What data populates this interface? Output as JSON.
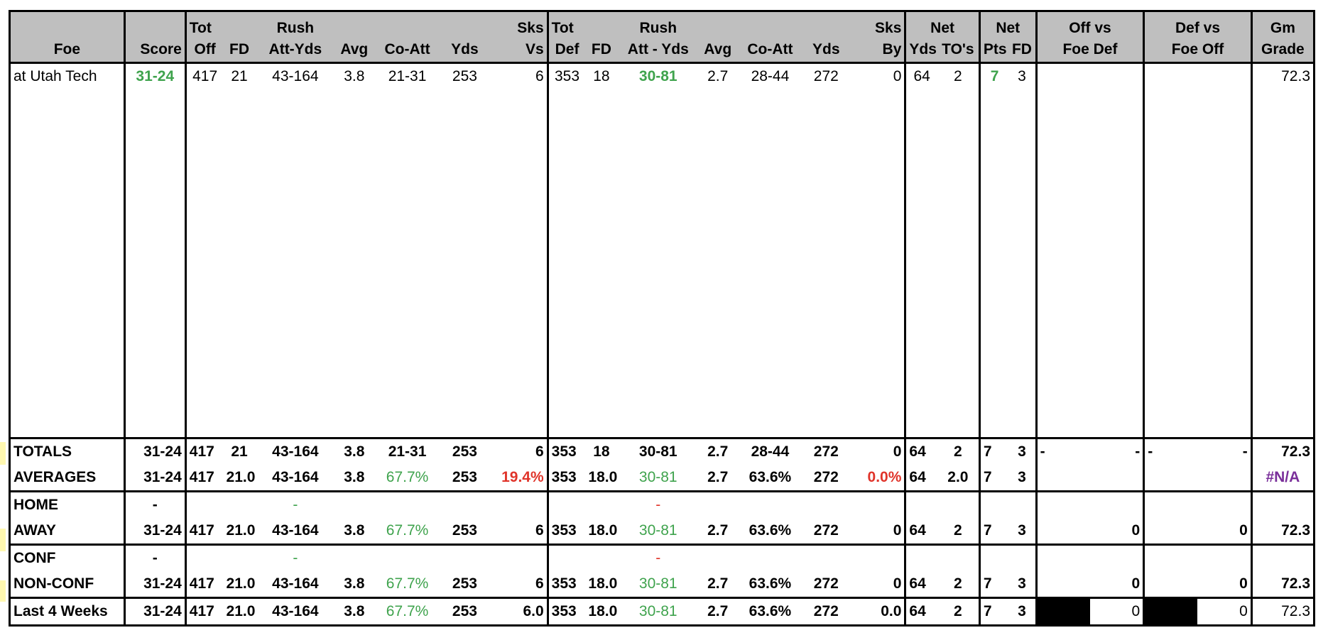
{
  "header": {
    "row1": [
      "",
      "",
      "Tot",
      "",
      "Rush",
      "",
      "",
      "",
      "Sks",
      "Tot",
      "",
      "Rush",
      "",
      "",
      "",
      "Sks",
      "Net",
      "",
      "Net",
      "",
      "Off vs",
      "",
      "Def vs",
      "",
      "Gm"
    ],
    "row2": [
      "Foe",
      "Score",
      "Off",
      "FD",
      "Att-Yds",
      "Avg",
      "Co-Att",
      "Yds",
      "Vs",
      "Def",
      "FD",
      "Att - Yds",
      "Avg",
      "Co-Att",
      "Yds",
      "By",
      "Yds",
      "TO's",
      "Pts",
      "FD",
      "Foe Def",
      "",
      "Foe Off",
      "",
      "Grade"
    ]
  },
  "game": {
    "foe": "at Utah Tech",
    "score": "31-24",
    "tot_off": "417",
    "fd_off": "21",
    "rush_off": "43-164",
    "avg_off": "3.8",
    "comp_off": "21-31",
    "pass_yds_off": "253",
    "sks_vs": "6",
    "tot_def": "353",
    "fd_def": "18",
    "rush_def": "30-81",
    "avg_def": "2.7",
    "comp_def": "28-44",
    "pass_yds_def": "272",
    "sks_by": "0",
    "net_yds": "64",
    "net_to": "2",
    "net_pts": "7",
    "net_fd": "3",
    "grade": "72.3"
  },
  "rows": {
    "totals": {
      "label": "TOTALS",
      "score": "31-24",
      "tot_off": "417",
      "fd_off": "21",
      "rush_off": "43-164",
      "avg_off": "3.8",
      "comp_off": "21-31",
      "pass_yds_off": "253",
      "sks_vs": "6",
      "tot_def": "353",
      "fd_def": "18",
      "rush_def": "30-81",
      "avg_def": "2.7",
      "comp_def": "28-44",
      "pass_yds_def": "272",
      "sks_by": "0",
      "net_yds": "64",
      "net_to": "2",
      "net_pts": "7",
      "net_fd": "3",
      "offvs_a": "-",
      "offvs_b": "-",
      "defvs_a": "-",
      "defvs_b": "-",
      "grade": "72.3"
    },
    "averages": {
      "label": "AVERAGES",
      "score": "31-24",
      "tot_off": "417",
      "fd_off": "21.0",
      "rush_off": "43-164",
      "avg_off": "3.8",
      "comp_off": "67.7%",
      "pass_yds_off": "253",
      "sks_vs": "19.4%",
      "tot_def": "353",
      "fd_def": "18.0",
      "rush_def": "30-81",
      "avg_def": "2.7",
      "comp_def": "63.6%",
      "pass_yds_def": "272",
      "sks_by": "0.0%",
      "net_yds": "64",
      "net_to": "2.0",
      "net_pts": "7",
      "net_fd": "3",
      "grade": "#N/A"
    },
    "home": {
      "label": "HOME",
      "score": "-",
      "rush_off": "-",
      "rush_def": "-"
    },
    "away": {
      "label": "AWAY",
      "score": "31-24",
      "tot_off": "417",
      "fd_off": "21.0",
      "rush_off": "43-164",
      "avg_off": "3.8",
      "comp_off": "67.7%",
      "pass_yds_off": "253",
      "sks_vs": "6",
      "tot_def": "353",
      "fd_def": "18.0",
      "rush_def": "30-81",
      "avg_def": "2.7",
      "comp_def": "63.6%",
      "pass_yds_def": "272",
      "sks_by": "0",
      "net_yds": "64",
      "net_to": "2",
      "net_pts": "7",
      "net_fd": "3",
      "offvs": "0",
      "defvs": "0",
      "grade": "72.3"
    },
    "conf": {
      "label": "CONF",
      "score": "-",
      "rush_off": "-",
      "rush_def": "-"
    },
    "nonconf": {
      "label": "NON-CONF",
      "score": "31-24",
      "tot_off": "417",
      "fd_off": "21.0",
      "rush_off": "43-164",
      "avg_off": "3.8",
      "comp_off": "67.7%",
      "pass_yds_off": "253",
      "sks_vs": "6",
      "tot_def": "353",
      "fd_def": "18.0",
      "rush_def": "30-81",
      "avg_def": "2.7",
      "comp_def": "63.6%",
      "pass_yds_def": "272",
      "sks_by": "0",
      "net_yds": "64",
      "net_to": "2",
      "net_pts": "7",
      "net_fd": "3",
      "offvs": "0",
      "defvs": "0",
      "grade": "72.3"
    },
    "last4": {
      "label": "Last 4 Weeks",
      "score": "31-24",
      "tot_off": "417",
      "fd_off": "21.0",
      "rush_off": "43-164",
      "avg_off": "3.8",
      "comp_off": "67.7%",
      "pass_yds_off": "253",
      "sks_vs": "6.0",
      "tot_def": "353",
      "fd_def": "18.0",
      "rush_def": "30-81",
      "avg_def": "2.7",
      "comp_def": "63.6%",
      "pass_yds_def": "272",
      "sks_by": "0.0",
      "net_yds": "64",
      "net_to": "2",
      "net_pts": "7",
      "net_fd": "3",
      "offvs": "0",
      "defvs": "0",
      "grade": "72.3"
    }
  },
  "colors": {
    "header_bg": "#bfbfbf",
    "good": "#3fa34d",
    "bad": "#e0342a",
    "na": "#7a2f9a"
  }
}
